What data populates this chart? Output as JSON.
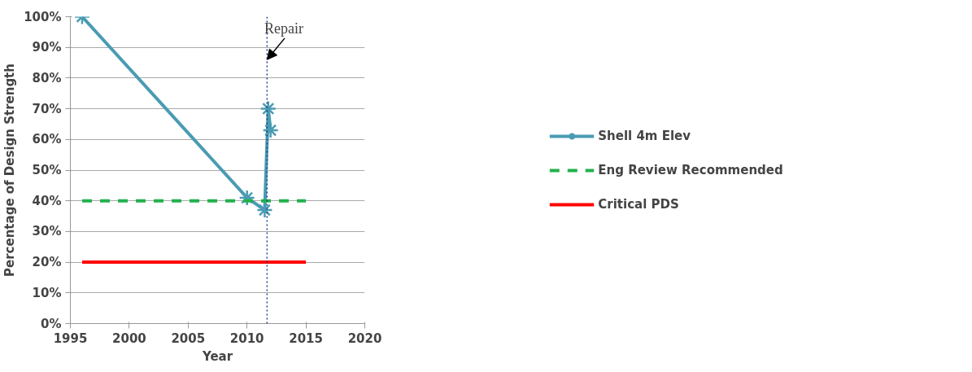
{
  "chart_data": {
    "type": "line",
    "xlabel": "Year",
    "ylabel": "Percentage of Design Strength",
    "series": [
      {
        "name": "Shell 4m Elev",
        "color": "#4a9bb3",
        "x": [
          1996,
          2010,
          2011.5,
          2011.8,
          2012
        ],
        "values": [
          100,
          41,
          37,
          70,
          63
        ],
        "marker": "cross",
        "line_style": "solid"
      },
      {
        "name": "Eng Review Recommended",
        "color": "#22b14c",
        "x": [
          1996,
          2015
        ],
        "values": [
          40,
          40
        ],
        "marker": "none",
        "line_style": "dashed"
      },
      {
        "name": "Critical PDS",
        "color": "#ff0000",
        "x": [
          1996,
          2015
        ],
        "values": [
          20,
          20
        ],
        "marker": "none",
        "line_style": "solid"
      }
    ],
    "ref_lines": [
      {
        "axis": "x",
        "value": 2011.7,
        "label": "Repair",
        "color": "#1f3f8f",
        "line_style": "dotted"
      }
    ],
    "xlim": [
      1995,
      2020
    ],
    "xticks": [
      1995,
      2000,
      2005,
      2010,
      2015,
      2020
    ],
    "ylim": [
      0,
      100
    ],
    "yticks": [
      {
        "value": 0,
        "label": "0%"
      },
      {
        "value": 10,
        "label": "10%"
      },
      {
        "value": 20,
        "label": "20%"
      },
      {
        "value": 30,
        "label": "30%"
      },
      {
        "value": 40,
        "label": "40%"
      },
      {
        "value": 50,
        "label": "50%"
      },
      {
        "value": 60,
        "label": "60%"
      },
      {
        "value": 70,
        "label": "70%"
      },
      {
        "value": 80,
        "label": "80%"
      },
      {
        "value": 90,
        "label": "90%"
      },
      {
        "value": 100,
        "label": "100%"
      }
    ],
    "grid": "y",
    "legend": "right"
  }
}
